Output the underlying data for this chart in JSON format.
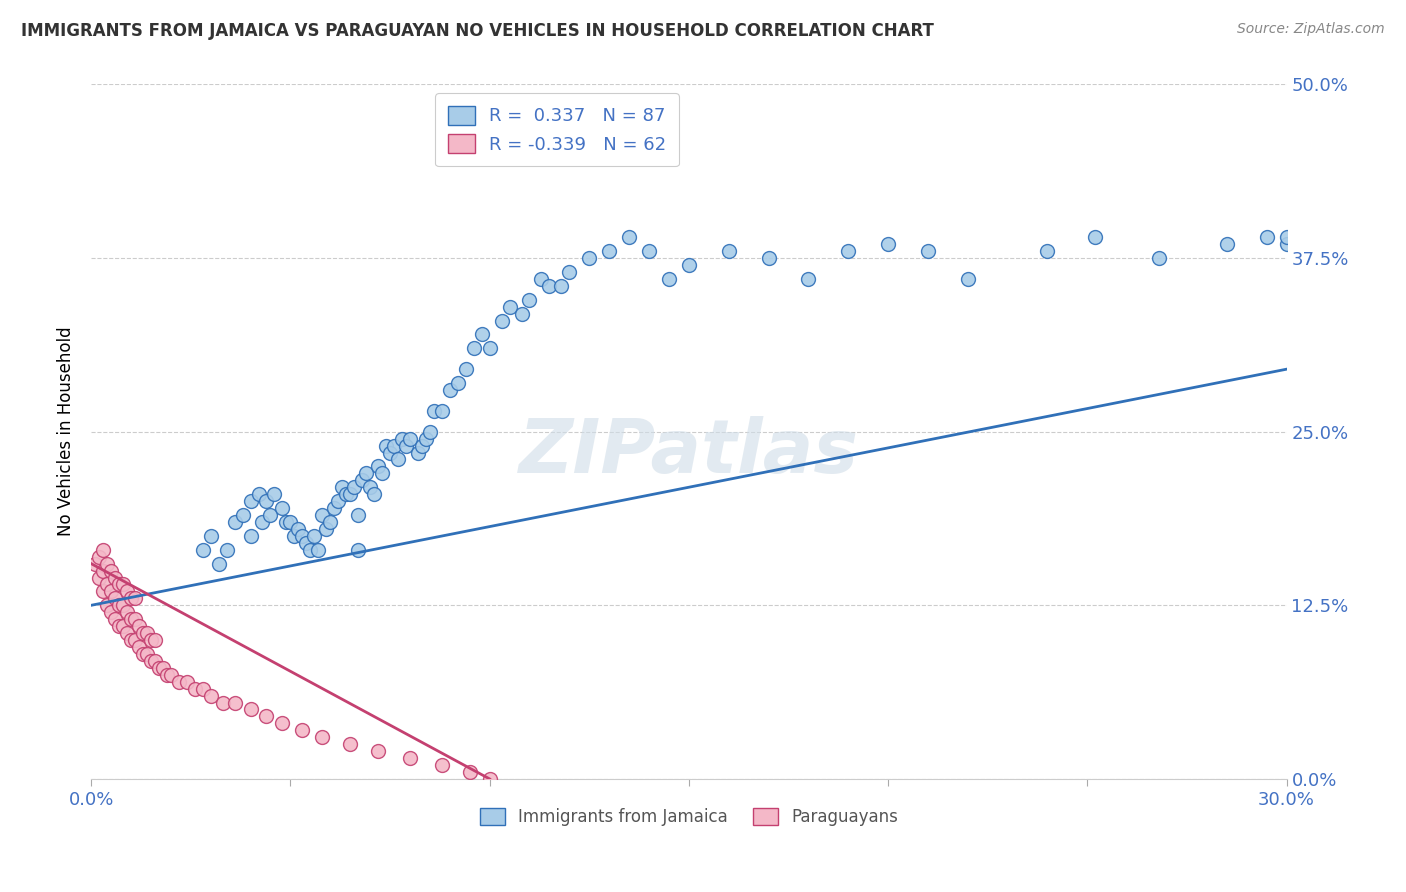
{
  "title": "IMMIGRANTS FROM JAMAICA VS PARAGUAYAN NO VEHICLES IN HOUSEHOLD CORRELATION CHART",
  "source": "Source: ZipAtlas.com",
  "xlabel_ticks": [
    "0.0%",
    "",
    "",
    "",
    "",
    "",
    "30.0%"
  ],
  "ylabel_ticks_right": [
    "0.0%",
    "12.5%",
    "25.0%",
    "37.5%",
    "50.0%"
  ],
  "xlim": [
    0.0,
    0.3
  ],
  "ylim": [
    0.0,
    0.5
  ],
  "legend_labels": [
    "Immigrants from Jamaica",
    "Paraguayans"
  ],
  "legend_r_blue": "R =  0.337",
  "legend_n_blue": "N = 87",
  "legend_r_pink": "R = -0.339",
  "legend_n_pink": "N = 62",
  "blue_color": "#a8cce8",
  "pink_color": "#f4b8c8",
  "line_blue": "#3070b8",
  "line_pink": "#c44070",
  "title_color": "#333333",
  "axis_label_color": "#4472c4",
  "ylabel": "No Vehicles in Household",
  "watermark": "ZIPatlas",
  "blue_line_x": [
    0.0,
    0.3
  ],
  "blue_line_y": [
    0.125,
    0.295
  ],
  "pink_line_x": [
    0.0,
    0.1
  ],
  "pink_line_y": [
    0.155,
    0.0
  ],
  "blue_x": [
    0.028,
    0.03,
    0.032,
    0.034,
    0.036,
    0.038,
    0.04,
    0.04,
    0.042,
    0.043,
    0.044,
    0.045,
    0.046,
    0.048,
    0.049,
    0.05,
    0.051,
    0.052,
    0.053,
    0.054,
    0.055,
    0.056,
    0.057,
    0.058,
    0.059,
    0.06,
    0.061,
    0.062,
    0.063,
    0.064,
    0.065,
    0.066,
    0.067,
    0.067,
    0.068,
    0.069,
    0.07,
    0.071,
    0.072,
    0.073,
    0.074,
    0.075,
    0.076,
    0.077,
    0.078,
    0.079,
    0.08,
    0.082,
    0.083,
    0.084,
    0.085,
    0.086,
    0.088,
    0.09,
    0.092,
    0.094,
    0.096,
    0.098,
    0.1,
    0.103,
    0.105,
    0.108,
    0.11,
    0.113,
    0.115,
    0.118,
    0.12,
    0.125,
    0.13,
    0.135,
    0.14,
    0.145,
    0.15,
    0.16,
    0.17,
    0.18,
    0.19,
    0.2,
    0.21,
    0.22,
    0.24,
    0.252,
    0.268,
    0.285,
    0.295,
    0.3,
    0.3
  ],
  "blue_y": [
    0.165,
    0.175,
    0.155,
    0.165,
    0.185,
    0.19,
    0.175,
    0.2,
    0.205,
    0.185,
    0.2,
    0.19,
    0.205,
    0.195,
    0.185,
    0.185,
    0.175,
    0.18,
    0.175,
    0.17,
    0.165,
    0.175,
    0.165,
    0.19,
    0.18,
    0.185,
    0.195,
    0.2,
    0.21,
    0.205,
    0.205,
    0.21,
    0.19,
    0.165,
    0.215,
    0.22,
    0.21,
    0.205,
    0.225,
    0.22,
    0.24,
    0.235,
    0.24,
    0.23,
    0.245,
    0.24,
    0.245,
    0.235,
    0.24,
    0.245,
    0.25,
    0.265,
    0.265,
    0.28,
    0.285,
    0.295,
    0.31,
    0.32,
    0.31,
    0.33,
    0.34,
    0.335,
    0.345,
    0.36,
    0.355,
    0.355,
    0.365,
    0.375,
    0.38,
    0.39,
    0.38,
    0.36,
    0.37,
    0.38,
    0.375,
    0.36,
    0.38,
    0.385,
    0.38,
    0.36,
    0.38,
    0.39,
    0.375,
    0.385,
    0.39,
    0.385,
    0.39
  ],
  "pink_x": [
    0.001,
    0.002,
    0.002,
    0.003,
    0.003,
    0.003,
    0.004,
    0.004,
    0.004,
    0.005,
    0.005,
    0.005,
    0.006,
    0.006,
    0.006,
    0.007,
    0.007,
    0.007,
    0.008,
    0.008,
    0.008,
    0.009,
    0.009,
    0.009,
    0.01,
    0.01,
    0.01,
    0.011,
    0.011,
    0.011,
    0.012,
    0.012,
    0.013,
    0.013,
    0.014,
    0.014,
    0.015,
    0.015,
    0.016,
    0.016,
    0.017,
    0.018,
    0.019,
    0.02,
    0.022,
    0.024,
    0.026,
    0.028,
    0.03,
    0.033,
    0.036,
    0.04,
    0.044,
    0.048,
    0.053,
    0.058,
    0.065,
    0.072,
    0.08,
    0.088,
    0.095,
    0.1
  ],
  "pink_y": [
    0.155,
    0.145,
    0.16,
    0.135,
    0.15,
    0.165,
    0.125,
    0.14,
    0.155,
    0.12,
    0.135,
    0.15,
    0.115,
    0.13,
    0.145,
    0.11,
    0.125,
    0.14,
    0.11,
    0.125,
    0.14,
    0.105,
    0.12,
    0.135,
    0.1,
    0.115,
    0.13,
    0.1,
    0.115,
    0.13,
    0.095,
    0.11,
    0.09,
    0.105,
    0.09,
    0.105,
    0.085,
    0.1,
    0.085,
    0.1,
    0.08,
    0.08,
    0.075,
    0.075,
    0.07,
    0.07,
    0.065,
    0.065,
    0.06,
    0.055,
    0.055,
    0.05,
    0.045,
    0.04,
    0.035,
    0.03,
    0.025,
    0.02,
    0.015,
    0.01,
    0.005,
    0.0
  ]
}
